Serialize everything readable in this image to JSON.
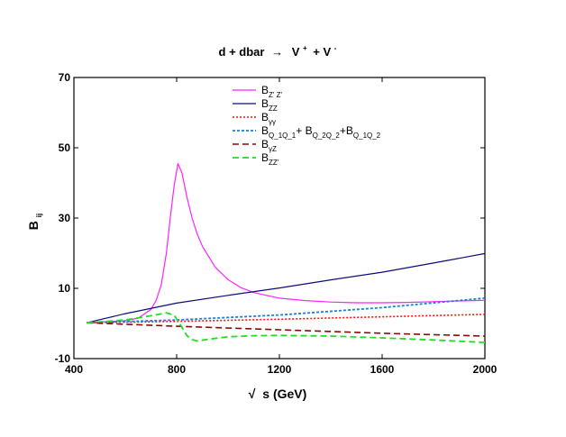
{
  "chart_data": {
    "type": "line",
    "title": {
      "lhs": "d + dbar",
      "arrow": "→",
      "rhs_a": "V",
      "sup_a": "+",
      "plus": "+ V",
      "sup_b": "-"
    },
    "xlabel": {
      "root": "√",
      "rest": "s (GeV)"
    },
    "ylabel": {
      "main": "B",
      "sub": "ij"
    },
    "xlim": [
      400,
      2000
    ],
    "ylim": [
      -10,
      70
    ],
    "xticks": [
      400,
      800,
      1200,
      1600,
      2000
    ],
    "yticks": [
      -10,
      10,
      30,
      50,
      70
    ],
    "x_tick_labels": [
      "400",
      "800",
      "1200",
      "1600",
      "2000"
    ],
    "y_tick_labels": [
      "-10",
      "10",
      "30",
      "50",
      "70"
    ],
    "grid": false,
    "legend_position": "top-center",
    "series": [
      {
        "key": "zpzp",
        "legend": [
          {
            "t": "B"
          },
          {
            "t": "Z' Z'",
            "sub": true
          }
        ],
        "color": "#ff22ff",
        "dash": "",
        "width": 1.2,
        "x": [
          450,
          600,
          650,
          700,
          720,
          740,
          760,
          775,
          790,
          805,
          820,
          840,
          860,
          880,
          900,
          950,
          1000,
          1050,
          1100,
          1200,
          1300,
          1400,
          1500,
          1600,
          1700,
          1800,
          1900,
          2000
        ],
        "y": [
          0.2,
          0.8,
          1.5,
          4,
          6.5,
          11,
          20,
          30,
          39,
          45.5,
          43,
          36,
          30,
          25.5,
          22,
          16,
          12.5,
          10.2,
          8.8,
          7.2,
          6.5,
          6.1,
          5.9,
          5.9,
          6,
          6.2,
          6.4,
          6.6
        ]
      },
      {
        "key": "zz",
        "legend": [
          {
            "t": "B"
          },
          {
            "t": "ZZ",
            "sub": true
          }
        ],
        "color": "#0d0d7a",
        "dash": "",
        "width": 1.2,
        "x": [
          450,
          600,
          800,
          1000,
          1200,
          1400,
          1600,
          1800,
          2000
        ],
        "y": [
          0.2,
          2.8,
          5.8,
          8,
          10.1,
          12.4,
          14.6,
          17.2,
          19.9
        ]
      },
      {
        "key": "gg",
        "legend": [
          {
            "t": "B"
          },
          {
            "t": "γγ",
            "sub": true
          }
        ],
        "color": "#ee1111",
        "dash": "2 2",
        "width": 1.6,
        "x": [
          450,
          800,
          1200,
          1600,
          2000
        ],
        "y": [
          0.2,
          0.6,
          1.2,
          1.9,
          2.6
        ]
      },
      {
        "key": "qq",
        "legend": [
          {
            "t": "B"
          },
          {
            "t": "Q_1Q_1",
            "sub": true
          },
          {
            "t": "+ B"
          },
          {
            "t": "Q_2Q_2",
            "sub": true
          },
          {
            "t": "+B"
          },
          {
            "t": "Q_1Q_2",
            "sub": true
          }
        ],
        "color": "#1a7fe0",
        "dash": "3 2",
        "width": 1.8,
        "x": [
          450,
          800,
          1200,
          1600,
          2000
        ],
        "y": [
          0.2,
          1,
          2.4,
          4.5,
          7.2
        ]
      },
      {
        "key": "gz",
        "legend": [
          {
            "t": "B"
          },
          {
            "t": "γZ",
            "sub": true
          }
        ],
        "color": "#8b0a0a",
        "dash": "7 4",
        "width": 1.6,
        "x": [
          450,
          800,
          1200,
          1600,
          2000
        ],
        "y": [
          0.2,
          -0.8,
          -1.8,
          -2.8,
          -3.6
        ]
      },
      {
        "key": "zzp",
        "legend": [
          {
            "t": "B"
          },
          {
            "t": "ZZ'",
            "sub": true
          }
        ],
        "color": "#22dd22",
        "dash": "7 4",
        "width": 1.8,
        "x": [
          450,
          600,
          700,
          760,
          790,
          820,
          840,
          860,
          880,
          920,
          1000,
          1100,
          1200,
          1400,
          1600,
          1800,
          2000
        ],
        "y": [
          0.2,
          1,
          2.2,
          3,
          2.4,
          -1,
          -3.5,
          -4.6,
          -5,
          -4.5,
          -3.8,
          -3.5,
          -3.4,
          -3.6,
          -4.1,
          -4.7,
          -5.4
        ]
      }
    ]
  }
}
